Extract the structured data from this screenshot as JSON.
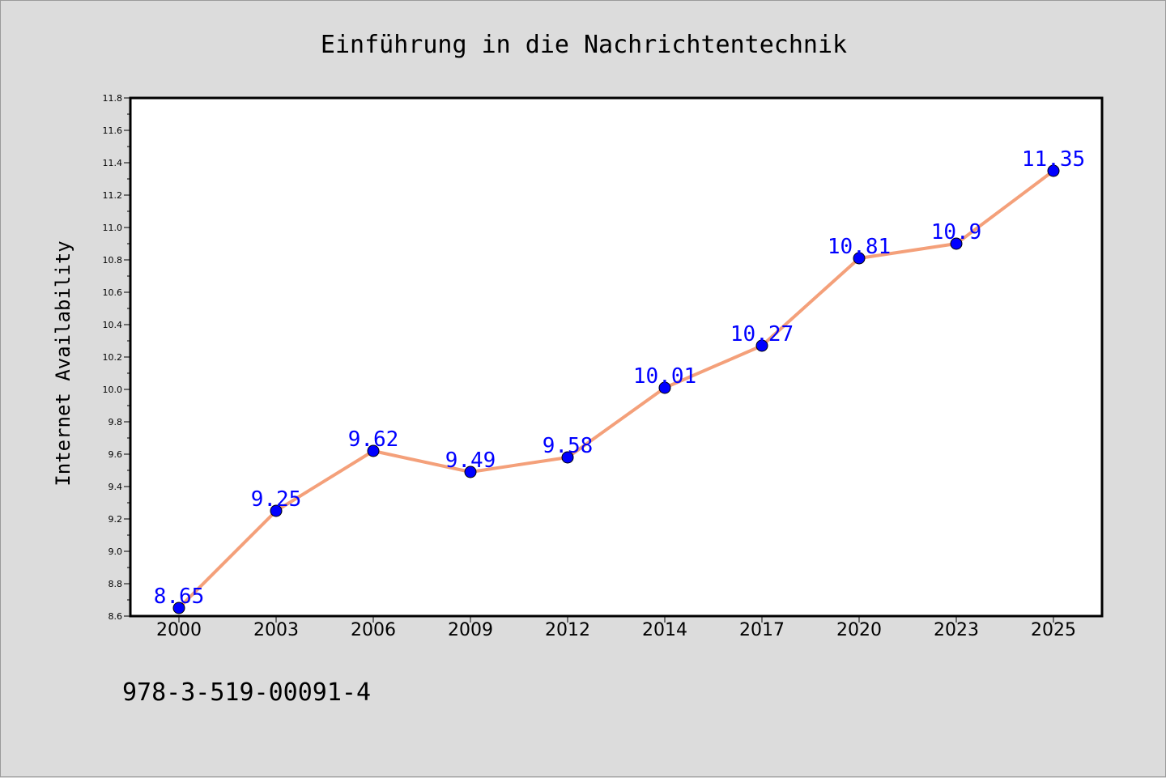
{
  "chart_data": {
    "type": "line",
    "title": "Einführung in die Nachrichtentechnik",
    "xlabel": "",
    "ylabel": "Internet Availability",
    "categories": [
      "2000",
      "2003",
      "2006",
      "2009",
      "2012",
      "2014",
      "2017",
      "2020",
      "2023",
      "2025"
    ],
    "series": [
      {
        "values": [
          8.65,
          9.25,
          9.62,
          9.49,
          9.58,
          10.01,
          10.27,
          10.81,
          10.9,
          11.35
        ],
        "labels": [
          "8.65",
          "9.25",
          "9.62",
          "9.49",
          "9.58",
          "10.01",
          "10.27",
          "10.81",
          "10.9",
          "11.35"
        ],
        "line_color": "#f4a07a",
        "marker_color": "#0000ff"
      }
    ],
    "ylim": [
      8.6,
      11.8
    ],
    "yticks": [
      "8.6",
      "8.8",
      "9.0",
      "9.2",
      "9.4",
      "9.6",
      "9.8",
      "10.0",
      "10.2",
      "10.4",
      "10.6",
      "10.8",
      "11.0",
      "11.2",
      "11.4",
      "11.6",
      "11.8"
    ],
    "grid": false,
    "legend": "none"
  },
  "footer": {
    "isbn": "978-3-519-00091-4"
  },
  "colors": {
    "background": "#dcdcdc",
    "plot_background": "#ffffff",
    "data_label": "#0000ff"
  }
}
